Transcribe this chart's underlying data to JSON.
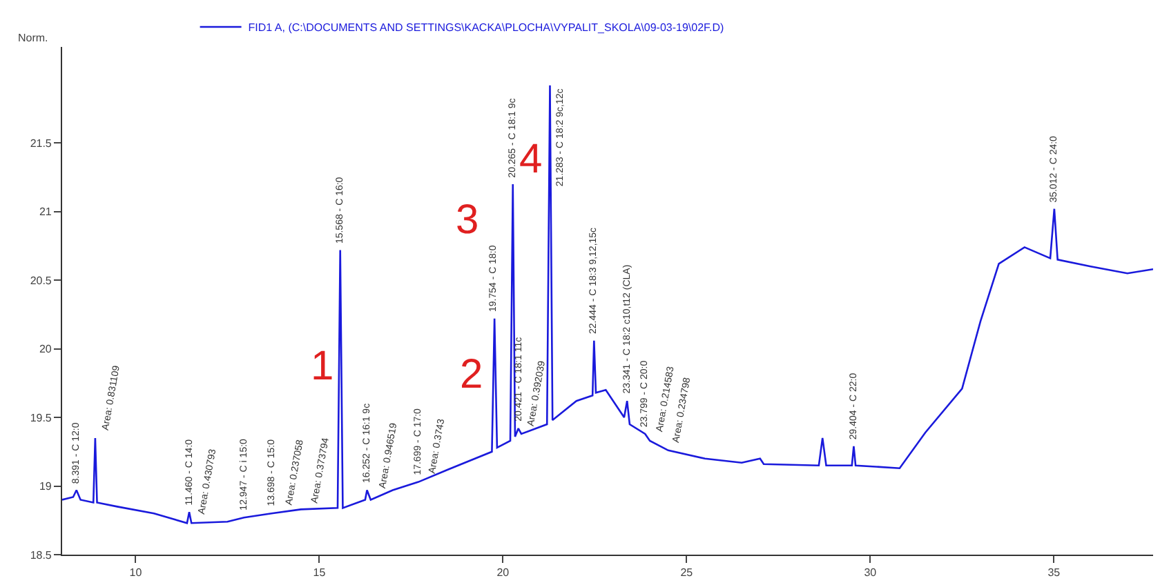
{
  "chart_data": {
    "type": "line",
    "ylabel": "Norm.",
    "legend": "top",
    "marker": "none",
    "line_style": "solid",
    "xlim": [
      8.0,
      37.7
    ],
    "xticks": [
      10,
      15,
      20,
      25,
      30,
      35
    ],
    "ylim": [
      18.5,
      22.2
    ],
    "yticks": [
      18.5,
      19,
      19.5,
      20,
      20.5,
      21,
      21.5
    ],
    "series": [
      {
        "name": "FID1 A, (C:\\DOCUMENTS AND SETTINGS\\KACKA\\PLOCHA\\VYPALIT_SKOLA\\09-03-19\\02F.D)",
        "color": "#1a1adc",
        "x": [
          8.0,
          8.3,
          8.39,
          8.5,
          8.85,
          8.9,
          8.95,
          9.5,
          10.5,
          11.4,
          11.46,
          11.52,
          12.5,
          12.95,
          13.7,
          14.5,
          15.5,
          15.57,
          15.64,
          16.25,
          16.3,
          16.4,
          17.0,
          17.7,
          18.5,
          19.7,
          19.77,
          19.84,
          20.2,
          20.27,
          20.33,
          20.42,
          20.5,
          21.2,
          21.28,
          21.35,
          22.0,
          22.44,
          22.48,
          22.53,
          22.8,
          23.3,
          23.38,
          23.45,
          23.87,
          24.0,
          24.5,
          25.5,
          26.5,
          27.0,
          27.1,
          28.6,
          28.7,
          28.8,
          29.5,
          29.55,
          29.6,
          30.8,
          31.5,
          32.5,
          33.0,
          33.5,
          34.2,
          34.9,
          35.01,
          35.1,
          36.0,
          37.0,
          37.7
        ],
        "values": [
          18.9,
          18.92,
          18.97,
          18.9,
          18.88,
          19.35,
          18.88,
          18.85,
          18.8,
          18.73,
          18.81,
          18.73,
          18.74,
          18.77,
          18.8,
          18.83,
          18.84,
          20.72,
          18.84,
          18.9,
          18.97,
          18.9,
          18.97,
          19.03,
          19.12,
          19.25,
          20.22,
          19.28,
          19.33,
          21.2,
          19.36,
          19.42,
          19.38,
          19.45,
          21.92,
          19.48,
          19.62,
          19.66,
          20.06,
          19.68,
          19.7,
          19.5,
          19.62,
          19.45,
          19.38,
          19.33,
          19.26,
          19.2,
          19.17,
          19.2,
          19.16,
          19.15,
          19.35,
          19.15,
          19.15,
          19.29,
          19.15,
          19.13,
          19.39,
          19.71,
          20.2,
          20.62,
          20.74,
          20.66,
          21.02,
          20.65,
          20.6,
          20.55,
          20.58
        ]
      }
    ],
    "annotations": [
      "1",
      "2",
      "3",
      "4",
      {
        "text": "8.391 - C 12:0",
        "x": 8.39,
        "y": 18.97
      },
      {
        "text": "11.460 - C 14:0",
        "x": 11.46,
        "y": 18.81
      },
      {
        "text": "12.947 - C i 15:0",
        "x": 12.95,
        "y": 18.77
      },
      {
        "text": "13.698 - C 15:0",
        "x": 13.7,
        "y": 18.8
      },
      {
        "text": "15.568 - C 16:0",
        "x": 15.57,
        "y": 20.72
      },
      {
        "text": "16.252 - C 16:1 9c",
        "x": 16.3,
        "y": 18.97
      },
      {
        "text": "17.699 - C 17:0",
        "x": 17.7,
        "y": 19.03
      },
      {
        "text": "19.754 - C 18:0",
        "x": 19.77,
        "y": 20.22
      },
      {
        "text": "20.265 - C 18:1 9c",
        "x": 20.27,
        "y": 21.2
      },
      {
        "text": "20.421 - C 18:1 11c",
        "x": 20.42,
        "y": 19.42
      },
      {
        "text": "21.283 - C 18:2 9c,12c",
        "x": 21.28,
        "y": 21.92
      },
      {
        "text": "22.444 - C 18:3 9,12,15c",
        "x": 22.48,
        "y": 20.06
      },
      {
        "text": "23.341 - C 18:2 c10,t12 (CLA)",
        "x": 23.38,
        "y": 19.62
      },
      {
        "text": "23.799 - C 20:0",
        "x": 23.87,
        "y": 19.38
      },
      {
        "text": "29.404 - C 22:0",
        "x": 29.55,
        "y": 19.29
      },
      {
        "text": "35.012 - C 24:0",
        "x": 35.01,
        "y": 21.02
      },
      {
        "text": "Area: 0.831109",
        "x": 8.9,
        "y": 19.35
      },
      {
        "text": "Area: 0.430793",
        "x": 11.52,
        "y": 18.73
      },
      {
        "text": "Area: 0.237058",
        "x": 13.9,
        "y": 18.8
      },
      {
        "text": "Area: 0.373794",
        "x": 14.6,
        "y": 18.82
      },
      {
        "text": "Area: 0.946519",
        "x": 16.45,
        "y": 18.92
      },
      {
        "text": "Area: 0.3743",
        "x": 17.8,
        "y": 19.03
      },
      {
        "text": "Area: 0.392039",
        "x": 20.5,
        "y": 19.38
      },
      {
        "text": "Area: 0.214583",
        "x": 24.0,
        "y": 19.33
      },
      {
        "text": "Area: 0.234798",
        "x": 24.45,
        "y": 19.26
      }
    ]
  }
}
